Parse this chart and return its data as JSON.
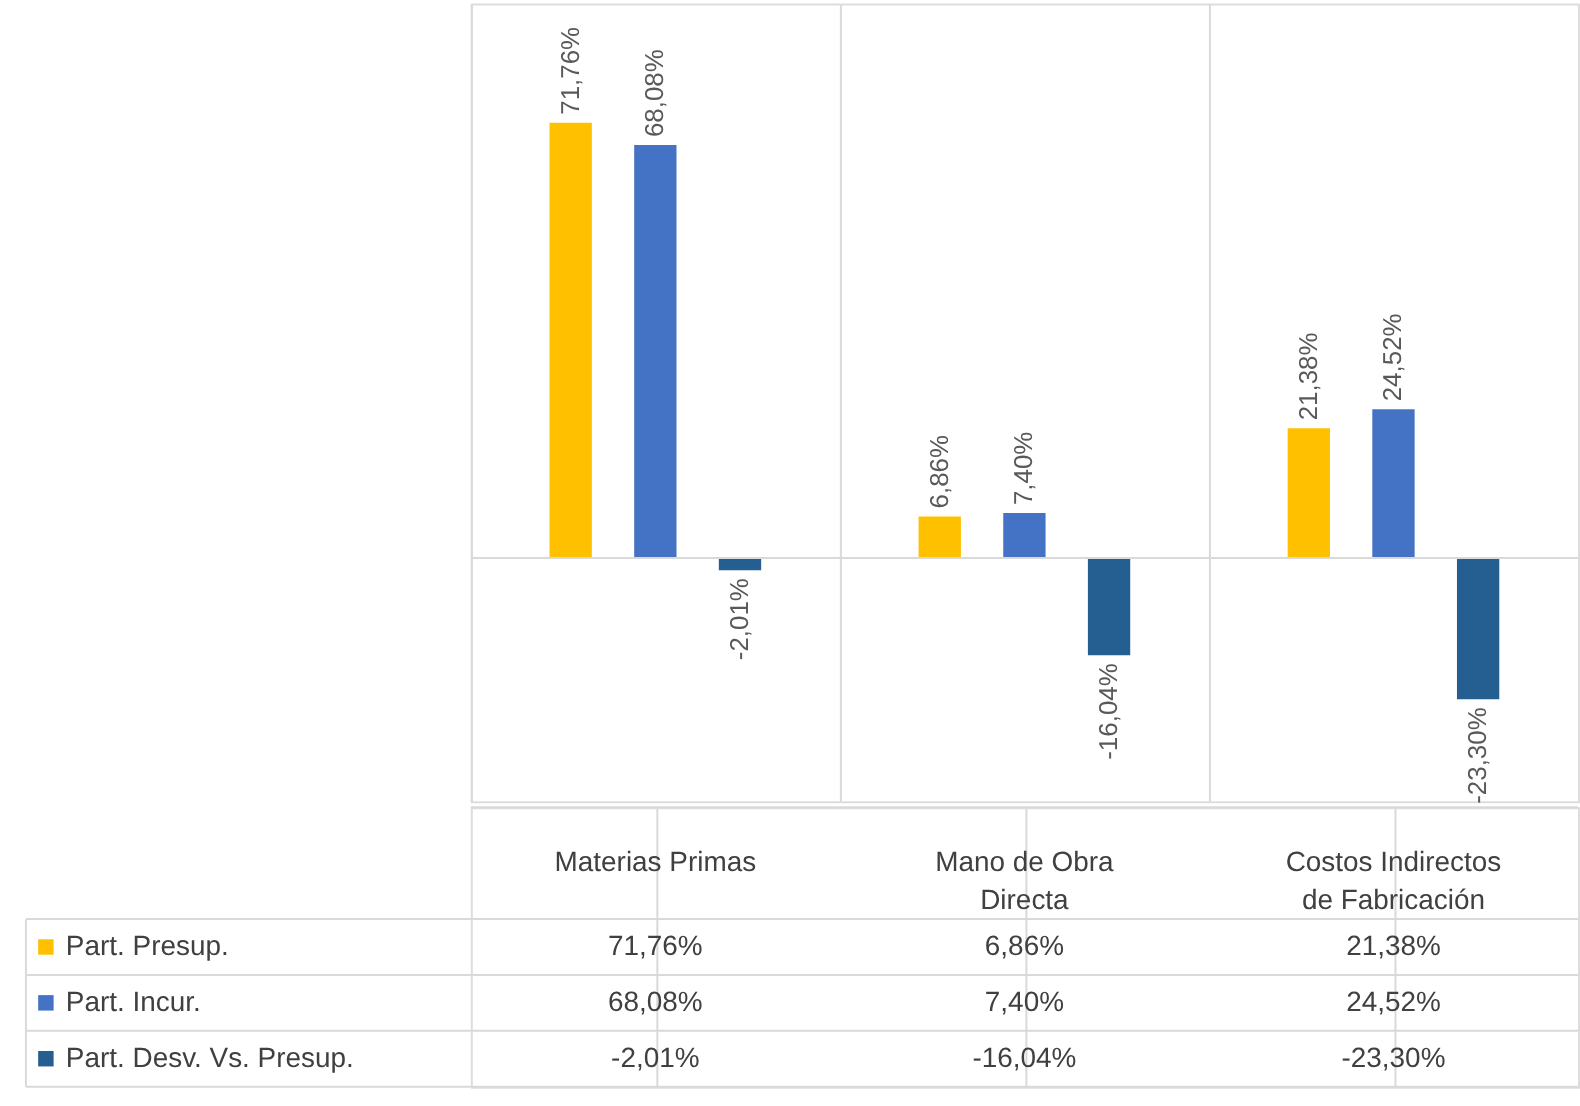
{
  "chart_data": {
    "type": "bar",
    "categories": [
      "Materias Primas",
      "Mano de Obra Directa",
      "Costos Indirectos de Fabricación"
    ],
    "series": [
      {
        "name": "Part. Presup.",
        "color": "#ffc000",
        "values": [
          71.76,
          6.86,
          21.38
        ],
        "value_labels": [
          "71,76%",
          "6,86%",
          "21,38%"
        ]
      },
      {
        "name": "Part. Incur.",
        "color": "#4472c4",
        "values": [
          68.08,
          7.4,
          24.52
        ],
        "value_labels": [
          "68,08%",
          "7,40%",
          "24,52%"
        ]
      },
      {
        "name": "Part. Desv. Vs. Presup.",
        "color": "#255e91",
        "values": [
          -2.01,
          -16.04,
          -23.3
        ],
        "value_labels": [
          "-2,01%",
          "-16,04%",
          "-23,30%"
        ]
      }
    ],
    "legend": "bottom",
    "grid": "x"
  }
}
